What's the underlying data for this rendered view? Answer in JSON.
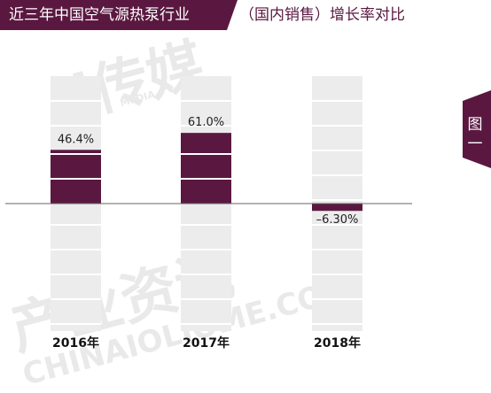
{
  "title": {
    "main": "近三年中国空气源热泵行业",
    "sub": "（国内销售）增长率对比"
  },
  "side_tab": {
    "label": "图一"
  },
  "watermark": {
    "brand_top": "i传媒",
    "brand_top_small": "MEDIA",
    "brand_bottom": "产业资讯",
    "url": "CHINAIOLIOME.COM"
  },
  "colors": {
    "bar": "#5a1840",
    "column_bg": "#ececec",
    "title_bg": "#5a1840",
    "baseline": "#666666"
  },
  "chart_data": {
    "type": "bar",
    "title": "近三年中国空气源热泵行业（国内销售）增长率对比",
    "categories": [
      "2016年",
      "2017年",
      "2018年"
    ],
    "values": [
      46.4,
      61.0,
      -6.3
    ],
    "value_labels": [
      "46.4%",
      "61.0%",
      "–6.30%"
    ],
    "unit": "%",
    "ylim": [
      -110,
      110
    ],
    "grid": false,
    "legend": "none"
  }
}
